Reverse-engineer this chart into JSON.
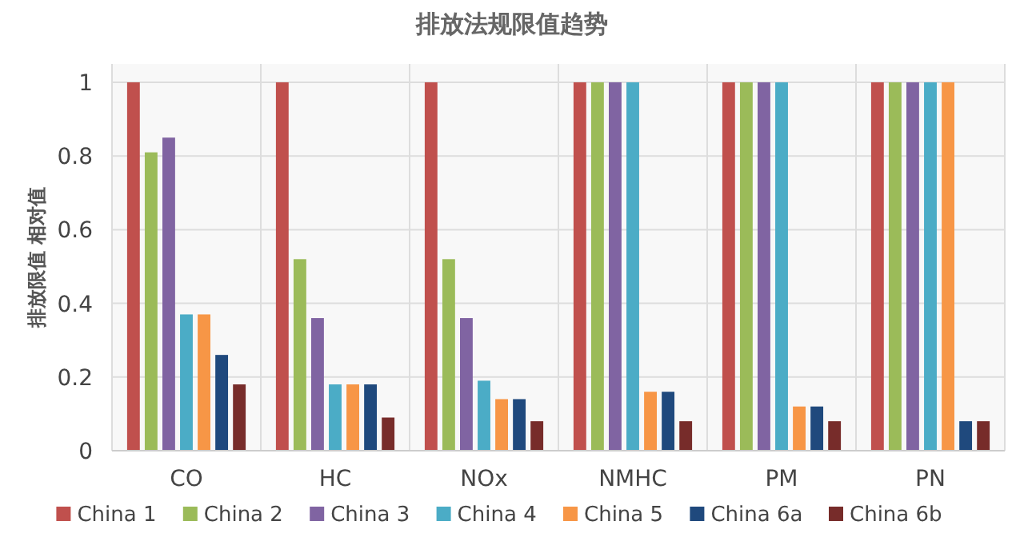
{
  "chart_data": {
    "type": "bar",
    "title": "排放法规限值趋势",
    "ylabel": "排放限值 相对值",
    "categories": [
      "CO",
      "HC",
      "NOx",
      "NMHC",
      "PM",
      "PN"
    ],
    "series": [
      {
        "name": "China 1",
        "color": "#c0504d",
        "values": [
          1,
          1,
          1,
          1,
          1,
          1
        ]
      },
      {
        "name": "China 2",
        "color": "#9bbb59",
        "values": [
          0.81,
          0.52,
          0.52,
          1,
          1,
          1
        ]
      },
      {
        "name": "China 3",
        "color": "#8064a2",
        "values": [
          0.85,
          0.36,
          0.36,
          1,
          1,
          1
        ]
      },
      {
        "name": "China 4",
        "color": "#4bacc6",
        "values": [
          0.37,
          0.18,
          0.19,
          1,
          1,
          1
        ]
      },
      {
        "name": "China 5",
        "color": "#f79646",
        "values": [
          0.37,
          0.18,
          0.14,
          0.16,
          0.12,
          1
        ]
      },
      {
        "name": "China 6a",
        "color": "#1f497d",
        "values": [
          0.26,
          0.18,
          0.14,
          0.16,
          0.12,
          0.08
        ]
      },
      {
        "name": "China 6b",
        "color": "#772c2a",
        "values": [
          0.18,
          0.09,
          0.08,
          0.08,
          0.08,
          0.08
        ]
      }
    ],
    "ylim": [
      0,
      1.05
    ],
    "yticks": [
      0,
      0.2,
      0.4,
      0.6,
      0.8,
      1
    ],
    "grid": true,
    "legend": "bottom"
  }
}
